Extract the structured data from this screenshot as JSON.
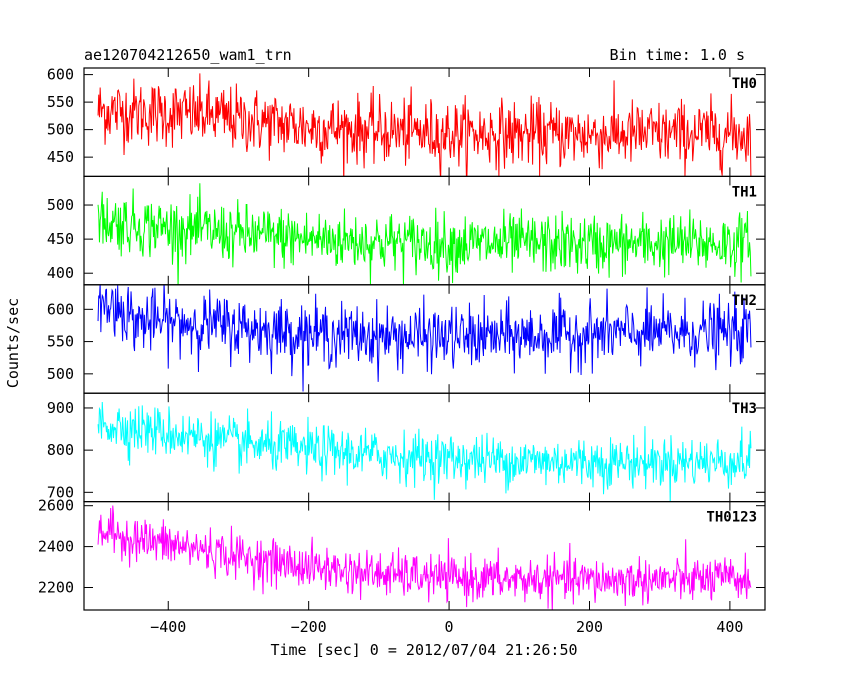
{
  "header": {
    "title": "ae120704212650_wam1_trn",
    "bin_time": "Bin time: 1.0 s"
  },
  "chart_data": {
    "type": "line",
    "title": "ae120704212650_wam1_trn",
    "subtitle": "Bin time: 1.0 s",
    "xlabel": "Time [sec] 0 = 2012/07/04 21:26:50",
    "ylabel": "Counts/sec",
    "xlim": [
      -520,
      450
    ],
    "x_ticks": [
      -400,
      -200,
      0,
      200,
      400
    ],
    "x_tick_labels": [
      "−400",
      "−200",
      "0",
      "200",
      "400"
    ],
    "x_range": [
      -500,
      430
    ],
    "bin_time": 1.0,
    "legend": "none",
    "grid": false,
    "panels": [
      {
        "label": "TH0",
        "color": "#ff0000",
        "ylim": [
          415,
          612
        ],
        "ticks": [
          450,
          500,
          550,
          600
        ],
        "tick_labels": [
          "450",
          "500",
          "550",
          "600"
        ],
        "trend_x": [
          -500,
          -420,
          -350,
          -300,
          -200,
          -100,
          0,
          100,
          200,
          300,
          430
        ],
        "trend_y": [
          535,
          530,
          527,
          518,
          505,
          497,
          493,
          492,
          491,
          492,
          493
        ],
        "noise_sd": 30
      },
      {
        "label": "TH1",
        "color": "#00ff00",
        "ylim": [
          383,
          542
        ],
        "ticks": [
          400,
          450,
          500
        ],
        "tick_labels": [
          "400",
          "450",
          "500"
        ],
        "trend_x": [
          -500,
          -420,
          -350,
          -300,
          -200,
          -100,
          0,
          100,
          200,
          300,
          430
        ],
        "trend_y": [
          478,
          468,
          462,
          457,
          450,
          446,
          443,
          443,
          442,
          443,
          444
        ],
        "noise_sd": 22
      },
      {
        "label": "TH2",
        "color": "#0000ff",
        "ylim": [
          470,
          638
        ],
        "ticks": [
          500,
          550,
          600
        ],
        "tick_labels": [
          "500",
          "550",
          "600"
        ],
        "trend_x": [
          -500,
          -460,
          -450,
          -350,
          -300,
          -200,
          -100,
          0,
          100,
          200,
          300,
          430
        ],
        "trend_y": [
          608,
          600,
          582,
          578,
          572,
          562,
          558,
          556,
          558,
          562,
          563,
          565
        ],
        "noise_sd": 24
      },
      {
        "label": "TH3",
        "color": "#00ffff",
        "ylim": [
          678,
          935
        ],
        "ticks": [
          700,
          800,
          900
        ],
        "tick_labels": [
          "700",
          "800",
          "900"
        ],
        "trend_x": [
          -500,
          -420,
          -350,
          -300,
          -200,
          -100,
          0,
          100,
          200,
          300,
          430
        ],
        "trend_y": [
          865,
          845,
          830,
          815,
          800,
          788,
          780,
          775,
          772,
          772,
          774
        ],
        "noise_sd": 30
      },
      {
        "label": "TH0123",
        "color": "#ff00ff",
        "ylim": [
          2090,
          2620
        ],
        "ticks": [
          2200,
          2400,
          2600
        ],
        "tick_labels": [
          "2200",
          "2400",
          "2600"
        ],
        "trend_x": [
          -500,
          -420,
          -350,
          -300,
          -200,
          -100,
          0,
          100,
          200,
          300,
          430
        ],
        "trend_y": [
          2480,
          2420,
          2385,
          2350,
          2300,
          2265,
          2245,
          2238,
          2235,
          2238,
          2240
        ],
        "noise_sd": 55
      }
    ]
  }
}
